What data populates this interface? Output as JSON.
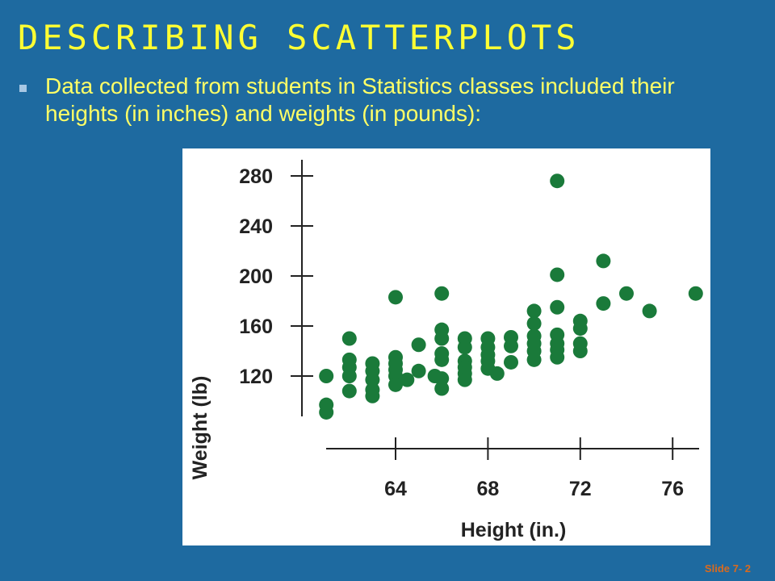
{
  "slide": {
    "title": "DESCRIBING SCATTERPLOTS",
    "bullet": "Data collected from students in Statistics classes included their heights (in inches) and weights (in pounds):",
    "slide_number": "Slide 7- 2"
  },
  "colors": {
    "background": "#1e6aa0",
    "title": "#ffff33",
    "bullet_text": "#ffff66",
    "points": "#1a7a3a",
    "axes": "#222222",
    "slide_number": "#d96a1e"
  },
  "chart_data": {
    "type": "scatter",
    "title": "",
    "xlabel": "Height (in.)",
    "ylabel": "Weight (lb)",
    "xlim": [
      60,
      77
    ],
    "ylim": [
      85,
      290
    ],
    "x_ticks": [
      64,
      68,
      72,
      76
    ],
    "y_ticks": [
      120,
      160,
      200,
      240,
      280
    ],
    "grid": false,
    "legend": "none",
    "points": [
      {
        "x": 61,
        "y": 120
      },
      {
        "x": 61,
        "y": 97
      },
      {
        "x": 61,
        "y": 91
      },
      {
        "x": 62,
        "y": 150
      },
      {
        "x": 62,
        "y": 133
      },
      {
        "x": 62,
        "y": 127
      },
      {
        "x": 62,
        "y": 120
      },
      {
        "x": 62,
        "y": 108
      },
      {
        "x": 63,
        "y": 130
      },
      {
        "x": 63,
        "y": 124
      },
      {
        "x": 63,
        "y": 117
      },
      {
        "x": 63,
        "y": 109
      },
      {
        "x": 63,
        "y": 104
      },
      {
        "x": 64,
        "y": 183
      },
      {
        "x": 64,
        "y": 135
      },
      {
        "x": 64,
        "y": 130
      },
      {
        "x": 64,
        "y": 125
      },
      {
        "x": 64,
        "y": 120
      },
      {
        "x": 64,
        "y": 113
      },
      {
        "x": 64.5,
        "y": 117
      },
      {
        "x": 65,
        "y": 145
      },
      {
        "x": 65,
        "y": 124
      },
      {
        "x": 65.7,
        "y": 120
      },
      {
        "x": 66,
        "y": 186
      },
      {
        "x": 66,
        "y": 157
      },
      {
        "x": 66,
        "y": 150
      },
      {
        "x": 66,
        "y": 138
      },
      {
        "x": 66,
        "y": 133
      },
      {
        "x": 66,
        "y": 118
      },
      {
        "x": 66,
        "y": 110
      },
      {
        "x": 67,
        "y": 150
      },
      {
        "x": 67,
        "y": 143
      },
      {
        "x": 67,
        "y": 132
      },
      {
        "x": 67,
        "y": 127
      },
      {
        "x": 67,
        "y": 122
      },
      {
        "x": 67,
        "y": 117
      },
      {
        "x": 68,
        "y": 150
      },
      {
        "x": 68,
        "y": 143
      },
      {
        "x": 68,
        "y": 137
      },
      {
        "x": 68,
        "y": 132
      },
      {
        "x": 68,
        "y": 126
      },
      {
        "x": 68.4,
        "y": 122
      },
      {
        "x": 69,
        "y": 151
      },
      {
        "x": 69,
        "y": 144
      },
      {
        "x": 69,
        "y": 131
      },
      {
        "x": 70,
        "y": 172
      },
      {
        "x": 70,
        "y": 162
      },
      {
        "x": 70,
        "y": 152
      },
      {
        "x": 70,
        "y": 146
      },
      {
        "x": 70,
        "y": 140
      },
      {
        "x": 70,
        "y": 133
      },
      {
        "x": 71,
        "y": 276
      },
      {
        "x": 71,
        "y": 201
      },
      {
        "x": 71,
        "y": 175
      },
      {
        "x": 71,
        "y": 153
      },
      {
        "x": 71,
        "y": 146
      },
      {
        "x": 71,
        "y": 141
      },
      {
        "x": 71,
        "y": 135
      },
      {
        "x": 72,
        "y": 164
      },
      {
        "x": 72,
        "y": 158
      },
      {
        "x": 72,
        "y": 146
      },
      {
        "x": 72,
        "y": 140
      },
      {
        "x": 73,
        "y": 212
      },
      {
        "x": 73,
        "y": 178
      },
      {
        "x": 74,
        "y": 186
      },
      {
        "x": 75,
        "y": 172
      },
      {
        "x": 77,
        "y": 186
      }
    ]
  }
}
